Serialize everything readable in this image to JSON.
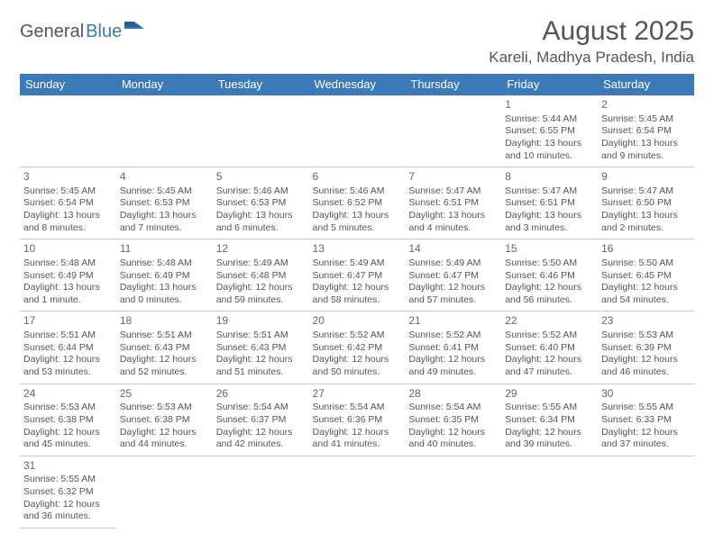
{
  "logo": {
    "part1": "General",
    "part2": "Blue"
  },
  "title": "August 2025",
  "location": "Kareli, Madhya Pradesh, India",
  "colors": {
    "header_bg": "#3a7ab8",
    "header_text": "#ffffff",
    "cell_border_top": "#3a7ab8",
    "cell_border_bottom": "#c8c8c8",
    "text": "#555555",
    "background": "#ffffff"
  },
  "day_headers": [
    "Sunday",
    "Monday",
    "Tuesday",
    "Wednesday",
    "Thursday",
    "Friday",
    "Saturday"
  ],
  "weeks": [
    [
      null,
      null,
      null,
      null,
      null,
      {
        "n": "1",
        "sr": "Sunrise: 5:44 AM",
        "ss": "Sunset: 6:55 PM",
        "dl": "Daylight: 13 hours and 10 minutes."
      },
      {
        "n": "2",
        "sr": "Sunrise: 5:45 AM",
        "ss": "Sunset: 6:54 PM",
        "dl": "Daylight: 13 hours and 9 minutes."
      }
    ],
    [
      {
        "n": "3",
        "sr": "Sunrise: 5:45 AM",
        "ss": "Sunset: 6:54 PM",
        "dl": "Daylight: 13 hours and 8 minutes."
      },
      {
        "n": "4",
        "sr": "Sunrise: 5:45 AM",
        "ss": "Sunset: 6:53 PM",
        "dl": "Daylight: 13 hours and 7 minutes."
      },
      {
        "n": "5",
        "sr": "Sunrise: 5:46 AM",
        "ss": "Sunset: 6:53 PM",
        "dl": "Daylight: 13 hours and 6 minutes."
      },
      {
        "n": "6",
        "sr": "Sunrise: 5:46 AM",
        "ss": "Sunset: 6:52 PM",
        "dl": "Daylight: 13 hours and 5 minutes."
      },
      {
        "n": "7",
        "sr": "Sunrise: 5:47 AM",
        "ss": "Sunset: 6:51 PM",
        "dl": "Daylight: 13 hours and 4 minutes."
      },
      {
        "n": "8",
        "sr": "Sunrise: 5:47 AM",
        "ss": "Sunset: 6:51 PM",
        "dl": "Daylight: 13 hours and 3 minutes."
      },
      {
        "n": "9",
        "sr": "Sunrise: 5:47 AM",
        "ss": "Sunset: 6:50 PM",
        "dl": "Daylight: 13 hours and 2 minutes."
      }
    ],
    [
      {
        "n": "10",
        "sr": "Sunrise: 5:48 AM",
        "ss": "Sunset: 6:49 PM",
        "dl": "Daylight: 13 hours and 1 minute."
      },
      {
        "n": "11",
        "sr": "Sunrise: 5:48 AM",
        "ss": "Sunset: 6:49 PM",
        "dl": "Daylight: 13 hours and 0 minutes."
      },
      {
        "n": "12",
        "sr": "Sunrise: 5:49 AM",
        "ss": "Sunset: 6:48 PM",
        "dl": "Daylight: 12 hours and 59 minutes."
      },
      {
        "n": "13",
        "sr": "Sunrise: 5:49 AM",
        "ss": "Sunset: 6:47 PM",
        "dl": "Daylight: 12 hours and 58 minutes."
      },
      {
        "n": "14",
        "sr": "Sunrise: 5:49 AM",
        "ss": "Sunset: 6:47 PM",
        "dl": "Daylight: 12 hours and 57 minutes."
      },
      {
        "n": "15",
        "sr": "Sunrise: 5:50 AM",
        "ss": "Sunset: 6:46 PM",
        "dl": "Daylight: 12 hours and 56 minutes."
      },
      {
        "n": "16",
        "sr": "Sunrise: 5:50 AM",
        "ss": "Sunset: 6:45 PM",
        "dl": "Daylight: 12 hours and 54 minutes."
      }
    ],
    [
      {
        "n": "17",
        "sr": "Sunrise: 5:51 AM",
        "ss": "Sunset: 6:44 PM",
        "dl": "Daylight: 12 hours and 53 minutes."
      },
      {
        "n": "18",
        "sr": "Sunrise: 5:51 AM",
        "ss": "Sunset: 6:43 PM",
        "dl": "Daylight: 12 hours and 52 minutes."
      },
      {
        "n": "19",
        "sr": "Sunrise: 5:51 AM",
        "ss": "Sunset: 6:43 PM",
        "dl": "Daylight: 12 hours and 51 minutes."
      },
      {
        "n": "20",
        "sr": "Sunrise: 5:52 AM",
        "ss": "Sunset: 6:42 PM",
        "dl": "Daylight: 12 hours and 50 minutes."
      },
      {
        "n": "21",
        "sr": "Sunrise: 5:52 AM",
        "ss": "Sunset: 6:41 PM",
        "dl": "Daylight: 12 hours and 49 minutes."
      },
      {
        "n": "22",
        "sr": "Sunrise: 5:52 AM",
        "ss": "Sunset: 6:40 PM",
        "dl": "Daylight: 12 hours and 47 minutes."
      },
      {
        "n": "23",
        "sr": "Sunrise: 5:53 AM",
        "ss": "Sunset: 6:39 PM",
        "dl": "Daylight: 12 hours and 46 minutes."
      }
    ],
    [
      {
        "n": "24",
        "sr": "Sunrise: 5:53 AM",
        "ss": "Sunset: 6:38 PM",
        "dl": "Daylight: 12 hours and 45 minutes."
      },
      {
        "n": "25",
        "sr": "Sunrise: 5:53 AM",
        "ss": "Sunset: 6:38 PM",
        "dl": "Daylight: 12 hours and 44 minutes."
      },
      {
        "n": "26",
        "sr": "Sunrise: 5:54 AM",
        "ss": "Sunset: 6:37 PM",
        "dl": "Daylight: 12 hours and 42 minutes."
      },
      {
        "n": "27",
        "sr": "Sunrise: 5:54 AM",
        "ss": "Sunset: 6:36 PM",
        "dl": "Daylight: 12 hours and 41 minutes."
      },
      {
        "n": "28",
        "sr": "Sunrise: 5:54 AM",
        "ss": "Sunset: 6:35 PM",
        "dl": "Daylight: 12 hours and 40 minutes."
      },
      {
        "n": "29",
        "sr": "Sunrise: 5:55 AM",
        "ss": "Sunset: 6:34 PM",
        "dl": "Daylight: 12 hours and 39 minutes."
      },
      {
        "n": "30",
        "sr": "Sunrise: 5:55 AM",
        "ss": "Sunset: 6:33 PM",
        "dl": "Daylight: 12 hours and 37 minutes."
      }
    ],
    [
      {
        "n": "31",
        "sr": "Sunrise: 5:55 AM",
        "ss": "Sunset: 6:32 PM",
        "dl": "Daylight: 12 hours and 36 minutes."
      },
      null,
      null,
      null,
      null,
      null,
      null
    ]
  ]
}
